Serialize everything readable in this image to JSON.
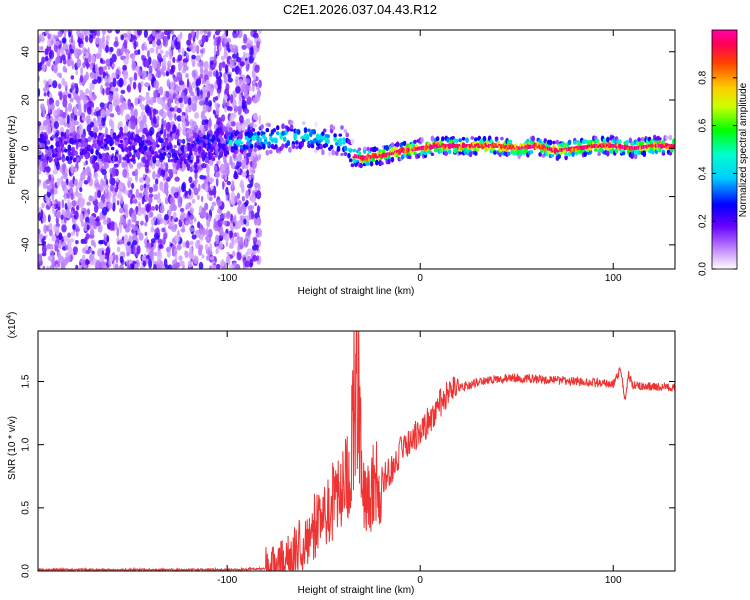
{
  "title": "C2E1.2026.037.04.43.R12",
  "chart_data": [
    {
      "type": "heatmap",
      "xlabel": "Height of straight line (km)",
      "ylabel": "Frequency (Hz)",
      "xlim": [
        -198,
        132
      ],
      "ylim": [
        -50,
        49
      ],
      "xticks": [
        -100,
        0,
        100
      ],
      "xtick_labels": [
        "-100",
        "0",
        "100"
      ],
      "yticks": [
        -40,
        -20,
        0,
        20,
        40
      ],
      "ytick_labels": [
        "-40",
        "-20",
        "0",
        "20",
        "40"
      ],
      "grid": false,
      "colorbar": {
        "label": "Normalized spectral amplitude",
        "range": [
          0,
          1
        ],
        "ticks": [
          0.0,
          0.2,
          0.4,
          0.6,
          0.8
        ],
        "tick_labels": [
          "0.0",
          "0.2",
          "0.4",
          "0.6",
          "0.8"
        ],
        "colors": [
          "#ffffff",
          "#cc99ff",
          "#6600ff",
          "#0000ff",
          "#00ffff",
          "#00ff00",
          "#ffff00",
          "#ff9900",
          "#ff0000",
          "#ff00aa"
        ]
      },
      "center_track": {
        "x": [
          -198,
          -180,
          -160,
          -140,
          -120,
          -100,
          -90,
          -80,
          -70,
          -60,
          -50,
          -40,
          -35,
          -30,
          -20,
          -10,
          0,
          10,
          20,
          30,
          40,
          50,
          60,
          70,
          80,
          90,
          100,
          110,
          120,
          132
        ],
        "y": [
          0,
          1,
          0,
          1,
          0,
          2,
          3,
          4,
          5,
          5,
          4,
          3,
          -3,
          -4,
          -3,
          -1,
          0,
          1,
          1,
          1,
          1,
          0,
          1,
          -1,
          0,
          1,
          1,
          0,
          1,
          1
        ]
      }
    },
    {
      "type": "line",
      "xlabel": "Height of straight line (km)",
      "ylabel": "SNR (10 * v/v)",
      "multiplier_label": "(x10",
      "multiplier_exp": "4",
      "multiplier_close": ")",
      "xlim": [
        -198,
        132
      ],
      "ylim": [
        0,
        1.9
      ],
      "xticks": [
        -100,
        0,
        100
      ],
      "xtick_labels": [
        "-100",
        "0",
        "100"
      ],
      "yticks": [
        0.0,
        0.5,
        1.0,
        1.5
      ],
      "ytick_labels": [
        "0.0",
        "0.5",
        "1.0",
        "1.5"
      ],
      "grid": false,
      "series_color": "#ee3333",
      "x": [
        -198,
        -150,
        -100,
        -80,
        -70,
        -65,
        -60,
        -55,
        -50,
        -45,
        -40,
        -35,
        -33,
        -30,
        -28,
        -25,
        -22,
        -20,
        -15,
        -10,
        -5,
        0,
        5,
        10,
        15,
        20,
        25,
        30,
        40,
        50,
        60,
        70,
        80,
        90,
        100,
        104,
        106,
        108,
        110,
        120,
        132
      ],
      "y": [
        0.01,
        0.01,
        0.01,
        0.02,
        0.06,
        0.15,
        0.25,
        0.35,
        0.45,
        0.55,
        0.65,
        0.9,
        1.55,
        0.75,
        0.6,
        0.65,
        0.7,
        0.72,
        0.8,
        0.95,
        1.05,
        1.1,
        1.2,
        1.32,
        1.4,
        1.45,
        1.47,
        1.5,
        1.52,
        1.53,
        1.52,
        1.51,
        1.5,
        1.49,
        1.48,
        1.6,
        1.35,
        1.55,
        1.47,
        1.46,
        1.45
      ]
    }
  ]
}
